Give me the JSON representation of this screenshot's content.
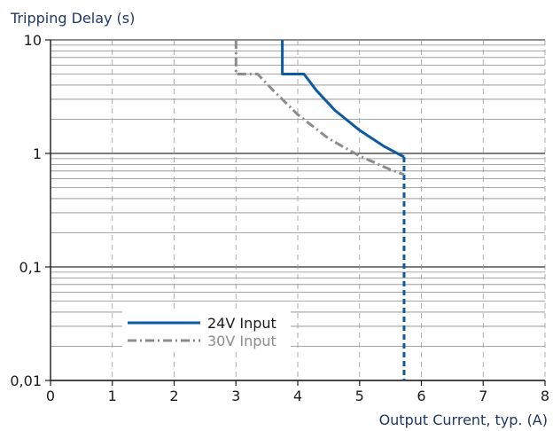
{
  "chart_data": {
    "type": "line",
    "ylabel": "Tripping Delay (s)",
    "xlabel": "Output Current, typ. (A)",
    "xlim": [
      0,
      8
    ],
    "ylim": [
      0.01,
      10
    ],
    "yscale": "log",
    "x_ticks": [
      "0",
      "1",
      "2",
      "3",
      "4",
      "5",
      "6",
      "7",
      "8"
    ],
    "y_ticks": [
      {
        "value": 10,
        "label": "10"
      },
      {
        "value": 1,
        "label": "1"
      },
      {
        "value": 0.1,
        "label": "0,1"
      },
      {
        "value": 0.01,
        "label": "0,01"
      }
    ],
    "grid": true,
    "legend_position": "bottom-left",
    "series": [
      {
        "name": "24V Input",
        "color": "#0b5aa2",
        "style": "solid",
        "points": [
          [
            3.75,
            10
          ],
          [
            3.75,
            5
          ],
          [
            4.1,
            5
          ],
          [
            4.3,
            3.6
          ],
          [
            4.6,
            2.4
          ],
          [
            5.0,
            1.6
          ],
          [
            5.4,
            1.15
          ],
          [
            5.72,
            0.93
          ]
        ],
        "drop": {
          "x": 5.72,
          "from": 0.93,
          "to": 0.01
        }
      },
      {
        "name": "30V Input",
        "color": "#8c8c8c",
        "style": "dashdot",
        "points": [
          [
            3.0,
            10
          ],
          [
            3.0,
            5
          ],
          [
            3.35,
            5
          ],
          [
            3.6,
            3.6
          ],
          [
            4.0,
            2.2
          ],
          [
            4.5,
            1.35
          ],
          [
            5.0,
            0.95
          ],
          [
            5.5,
            0.72
          ],
          [
            5.72,
            0.65
          ]
        ]
      }
    ]
  }
}
